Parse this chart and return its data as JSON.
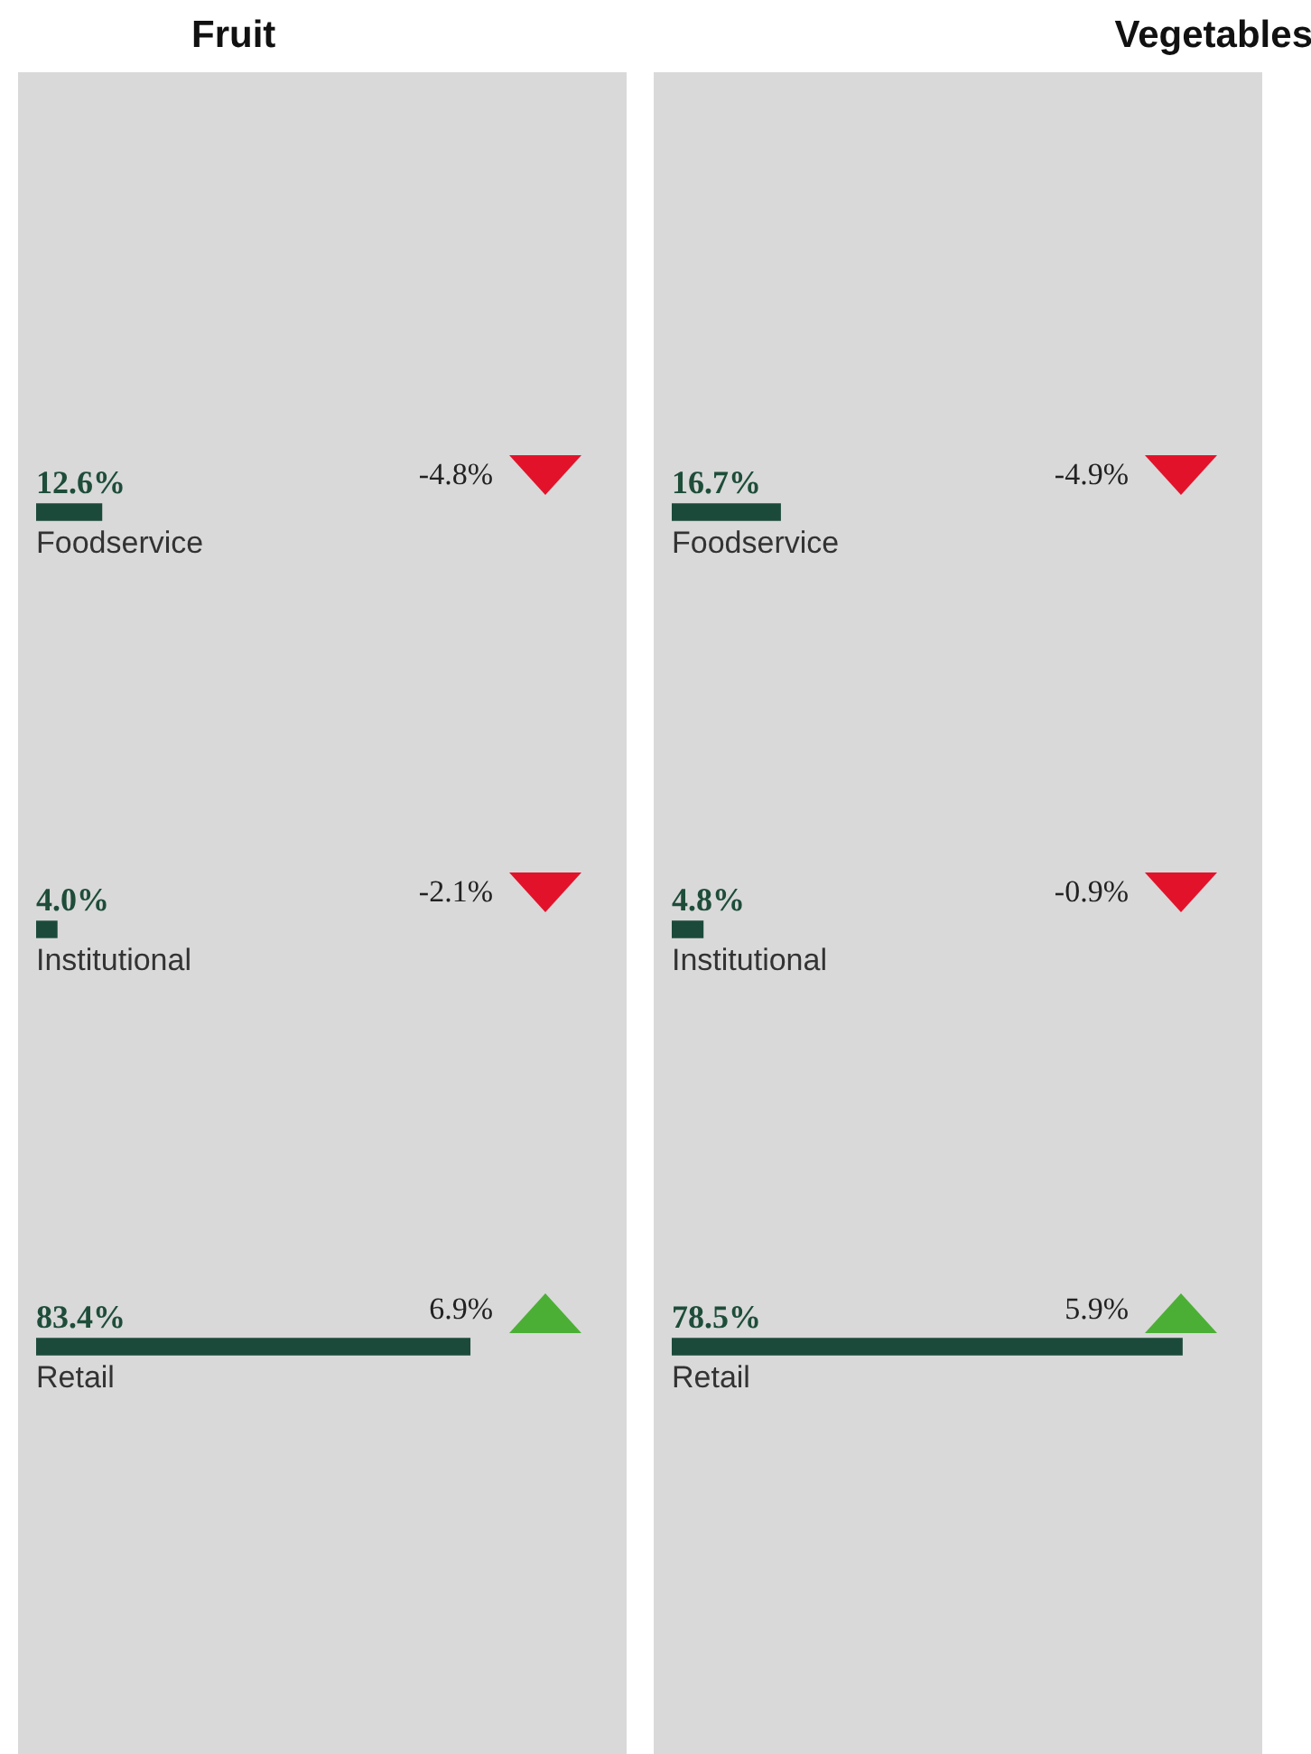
{
  "chart_data": [
    {
      "type": "bar",
      "title": "Fruit",
      "orientation": "horizontal",
      "categories": [
        "Foodservice",
        "Institutional",
        "Retail"
      ],
      "values": [
        12.6,
        4.0,
        83.4
      ],
      "color": "#1b4a3a",
      "value_labels": [
        "12.6%",
        "4.0%",
        "83.4%"
      ],
      "tick_labels": false,
      "annotations": [
        "-4.8%",
        "-2.1%",
        "6.9%"
      ]
    },
    {
      "type": "bar",
      "title": "Vegetables",
      "orientation": "horizontal",
      "categories": [
        "Foodservice",
        "Institutional",
        "Retail"
      ],
      "values": [
        16.7,
        4.8,
        78.5
      ],
      "color": "#1b4a3a",
      "value_labels": [
        "16.7%",
        "4.8%",
        "78.5%"
      ],
      "tick_labels": false,
      "annotations": [
        "-4.9%",
        "-0.9%",
        "5.9%"
      ]
    }
  ]
}
